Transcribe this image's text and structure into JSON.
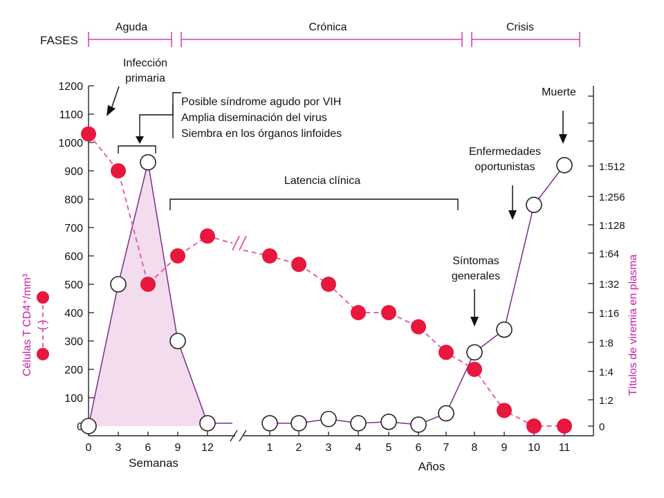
{
  "phases": {
    "label": "FASES",
    "items": [
      {
        "name": "Aguda"
      },
      {
        "name": "Crónica"
      },
      {
        "name": "Crisis"
      }
    ]
  },
  "annotations": {
    "primary_infection": [
      "Infección",
      "primaria"
    ],
    "acute_box": [
      "Posible síndrome agudo por VIH",
      "Amplia diseminación del virus",
      "Siembra en los órganos linfoides"
    ],
    "latency": "Latencia clínica",
    "opportunistic": [
      "Enfermedades",
      "oportunistas"
    ],
    "symptoms": [
      "Síntomas",
      "generales"
    ],
    "death": "Muerte"
  },
  "colors": {
    "cd4": "#e8173d",
    "cd4_line": "#ea5ca8",
    "viremia_line": "#7a2b8a",
    "fill": "#f4dcef",
    "right_axis": "#c61fa8"
  },
  "chart_data": {
    "type": "line",
    "title": "",
    "xlabel_left": "Semanas",
    "xlabel_right": "Años",
    "ylabel": "Células T CD4⁺/mm³",
    "y2label": "Títulos de viremia en plasma",
    "x_ticks": [
      "0",
      "3",
      "6",
      "9",
      "12",
      "1",
      "2",
      "3",
      "4",
      "5",
      "6",
      "7",
      "8",
      "9",
      "10",
      "11"
    ],
    "y_ticks": [
      "0",
      "100",
      "200",
      "300",
      "400",
      "500",
      "600",
      "700",
      "800",
      "900",
      "1000",
      "1100",
      "1200"
    ],
    "y2_ticks": [
      "0",
      "1:2",
      "1:4",
      "1:8",
      "1:16",
      "1:32",
      "1:64",
      "1:128",
      "1:256",
      "1:512"
    ],
    "ylim": [
      0,
      1200
    ],
    "series": [
      {
        "name": "Células T CD4⁺/mm³",
        "x": [
          "0",
          "3",
          "6",
          "9",
          "12",
          "1",
          "2",
          "3",
          "4",
          "5",
          "6",
          "7",
          "8",
          "9",
          "10",
          "11"
        ],
        "points": [
          [
            0,
            1030
          ],
          [
            1,
            900
          ],
          [
            2,
            500
          ],
          [
            3,
            600
          ],
          [
            4,
            670
          ],
          [
            5,
            600
          ],
          [
            6,
            570
          ],
          [
            7,
            500
          ],
          [
            8,
            400
          ],
          [
            9,
            400
          ],
          [
            10,
            350
          ],
          [
            11,
            260
          ],
          [
            12,
            200
          ],
          [
            13,
            55
          ],
          [
            14,
            0
          ],
          [
            15,
            0
          ]
        ]
      },
      {
        "name": "Títulos de viremia en plasma",
        "points": [
          [
            0,
            0
          ],
          [
            1,
            500
          ],
          [
            2,
            930
          ],
          [
            3,
            300
          ],
          [
            4,
            10
          ],
          [
            5,
            10
          ],
          [
            6,
            10
          ],
          [
            7,
            25
          ],
          [
            8,
            10
          ],
          [
            9,
            15
          ],
          [
            10,
            5
          ],
          [
            11,
            45
          ],
          [
            12,
            260
          ],
          [
            13,
            340
          ],
          [
            14,
            780
          ],
          [
            15,
            920
          ]
        ]
      }
    ]
  }
}
